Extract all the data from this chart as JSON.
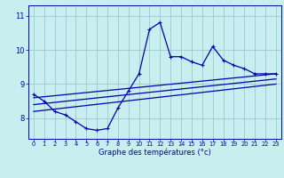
{
  "xlabel": "Graphe des températures (°c)",
  "background_color": "#c8eef0",
  "grid_color": "#99cccc",
  "line_color": "#0000aa",
  "xlim": [
    -0.5,
    23.5
  ],
  "ylim": [
    7.4,
    11.3
  ],
  "yticks": [
    8,
    9,
    10,
    11
  ],
  "ytick_labels": [
    "8",
    "9",
    "10",
    "11"
  ],
  "xticks": [
    0,
    1,
    2,
    3,
    4,
    5,
    6,
    7,
    8,
    9,
    10,
    11,
    12,
    13,
    14,
    15,
    16,
    17,
    18,
    19,
    20,
    21,
    22,
    23
  ],
  "main_x": [
    0,
    1,
    2,
    3,
    4,
    5,
    6,
    7,
    8,
    9,
    10,
    11,
    12,
    13,
    14,
    15,
    16,
    17,
    18,
    19,
    20,
    21,
    22,
    23
  ],
  "main_y": [
    8.7,
    8.5,
    8.2,
    8.1,
    7.9,
    7.7,
    7.65,
    7.7,
    8.3,
    8.8,
    9.3,
    10.6,
    10.8,
    9.8,
    9.8,
    9.65,
    9.55,
    10.1,
    9.7,
    9.55,
    9.45,
    9.3,
    9.3,
    9.3
  ],
  "trend1_x": [
    0,
    23
  ],
  "trend1_y": [
    8.6,
    9.3
  ],
  "trend2_x": [
    0,
    23
  ],
  "trend2_y": [
    8.4,
    9.15
  ],
  "trend3_x": [
    0,
    23
  ],
  "trend3_y": [
    8.2,
    9.0
  ],
  "xlabel_fontsize": 6.0,
  "xtick_fontsize": 4.8,
  "ytick_fontsize": 6.0
}
